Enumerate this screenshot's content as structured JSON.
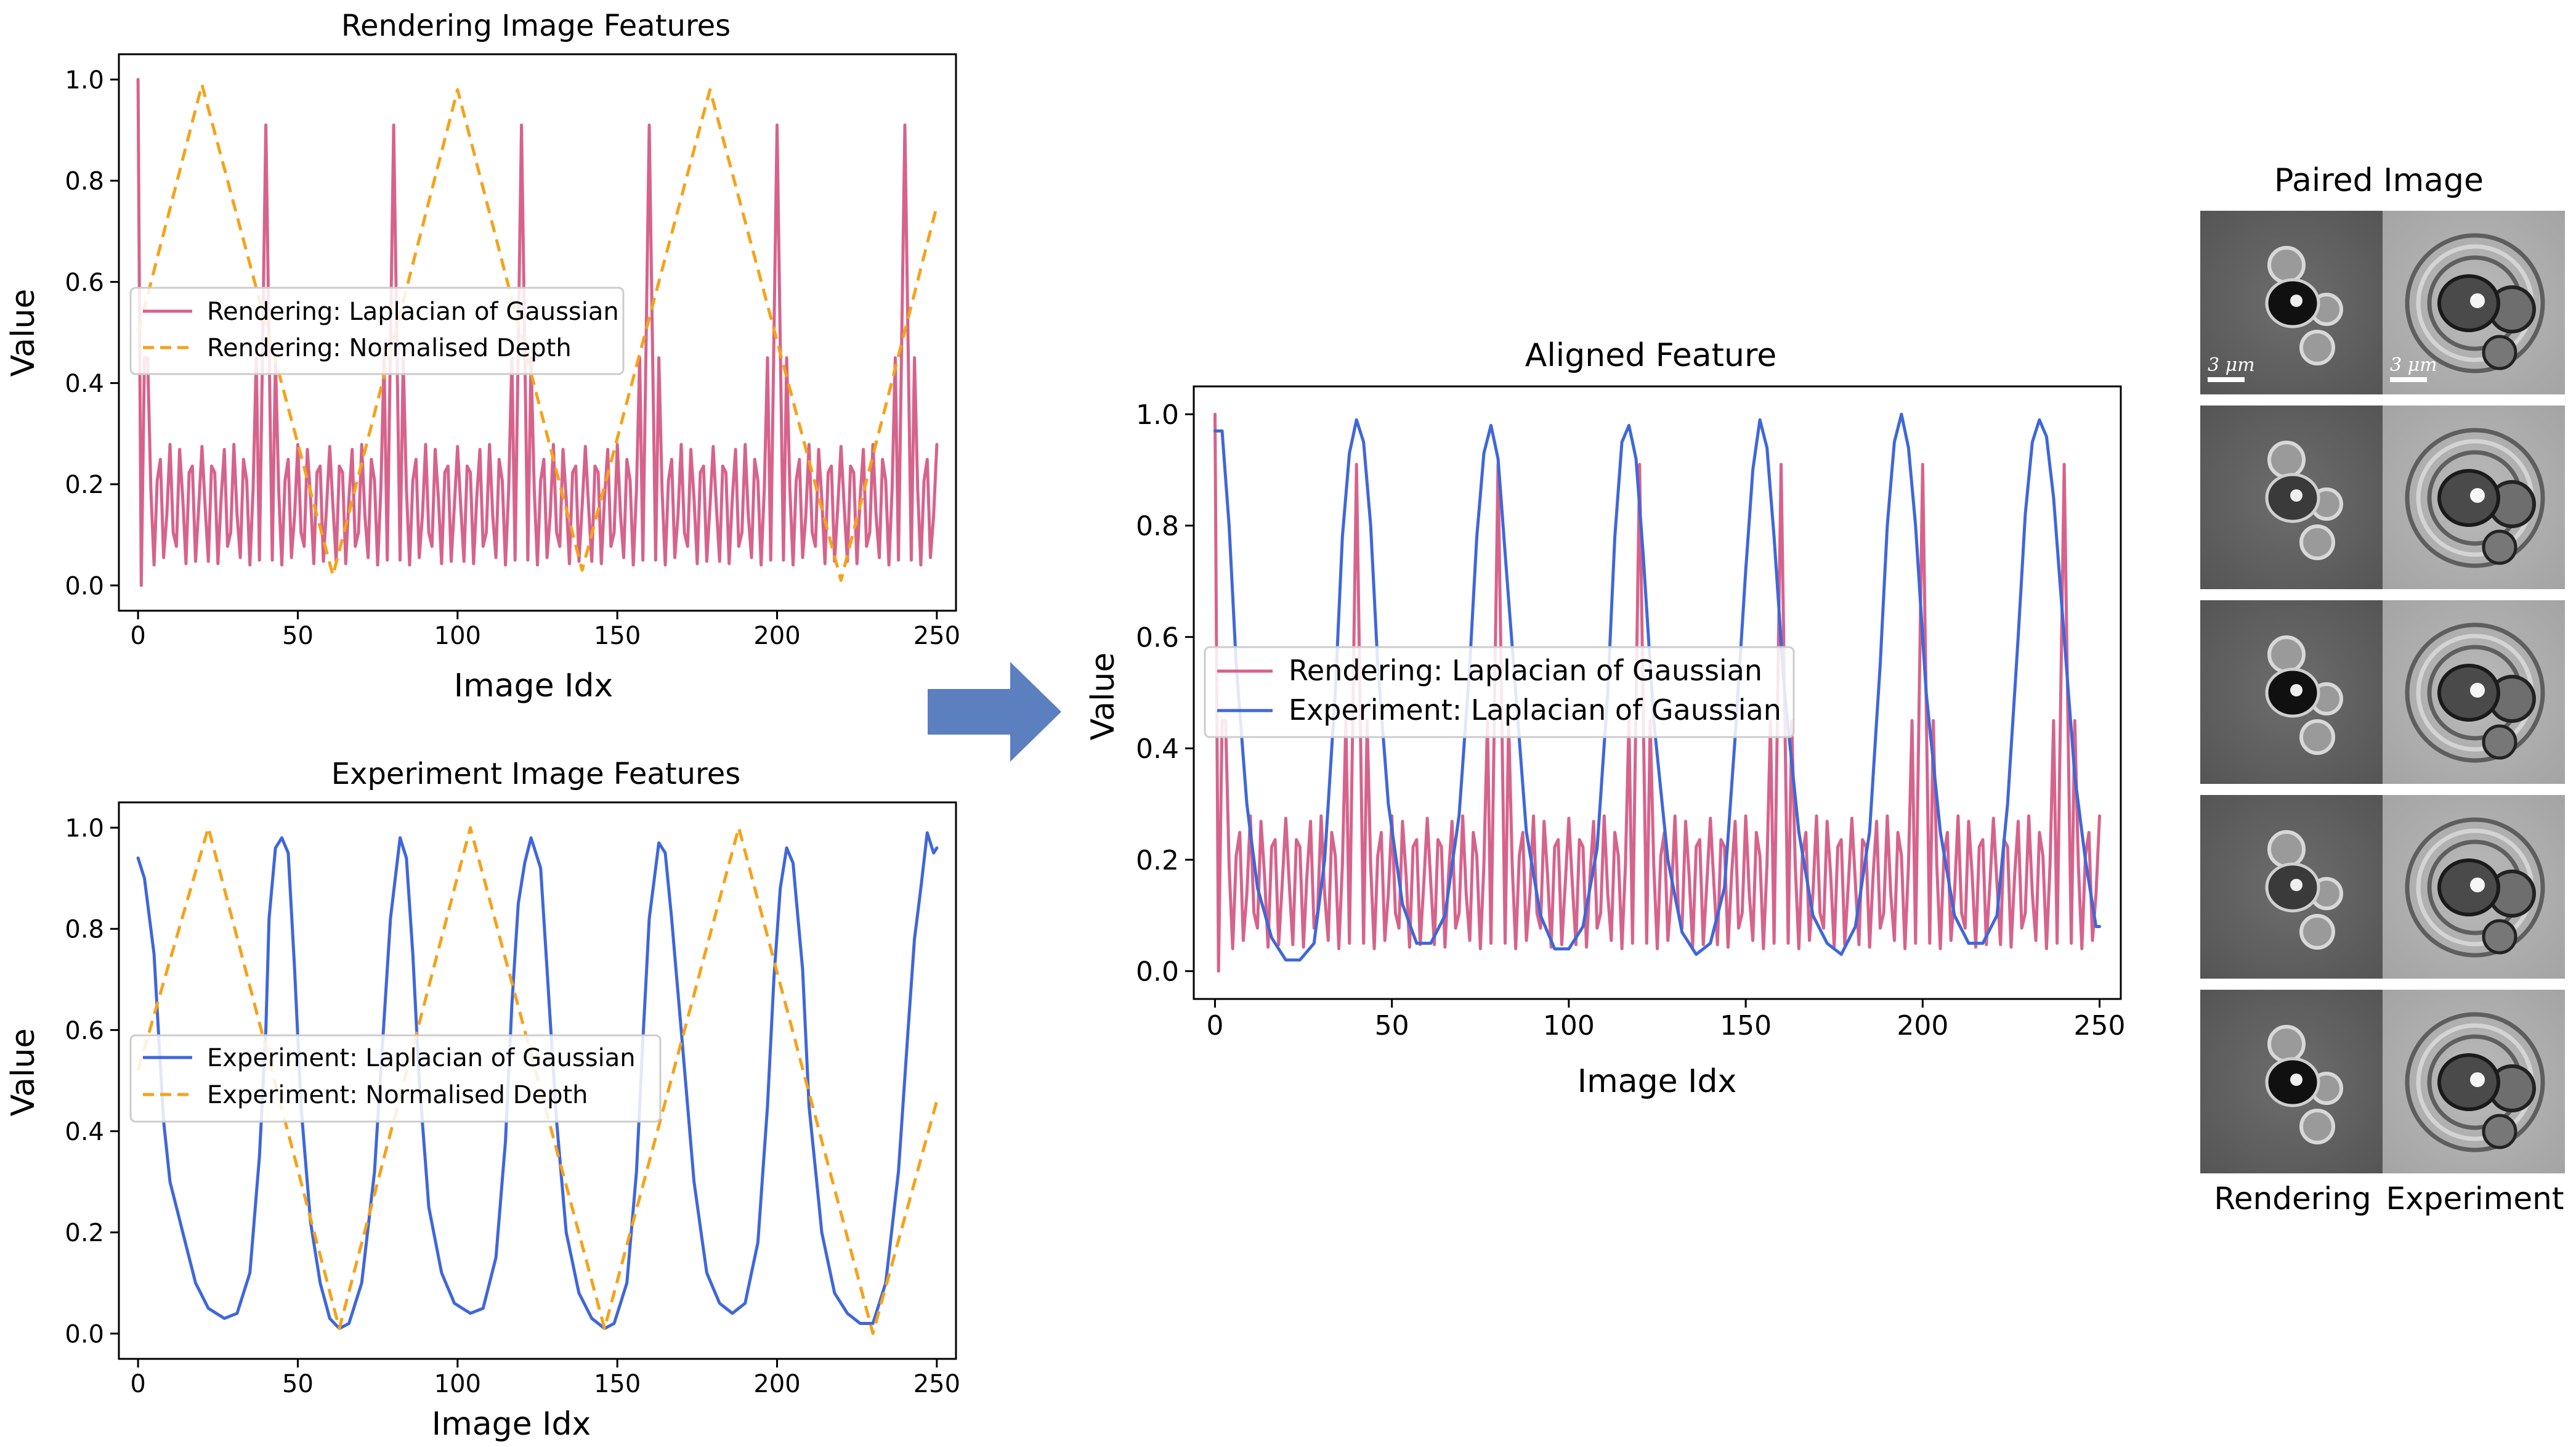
{
  "chart_data": [
    {
      "id": "rendering",
      "type": "line",
      "title": "Rendering Image Features",
      "xlabel": "Image Idx",
      "ylabel": "Value",
      "xlim": [
        -6,
        256
      ],
      "ylim": [
        -0.05,
        1.05
      ],
      "xticks": [
        0,
        50,
        100,
        150,
        200,
        250
      ],
      "yticks": [
        0.0,
        0.2,
        0.4,
        0.6,
        0.8,
        1.0
      ],
      "xtick_labels": [
        "0",
        "50",
        "100",
        "150",
        "200",
        "250"
      ],
      "ytick_labels": [
        "0.0",
        "0.2",
        "0.4",
        "0.6",
        "0.8",
        "1.0"
      ],
      "legend": "center-left",
      "series": [
        {
          "name": "Rendering: Laplacian of Gaussian",
          "color": "#d6638c",
          "style": "solid",
          "pattern": "log_render",
          "x_range": [
            0,
            250
          ]
        },
        {
          "name": "Rendering: Normalised Depth",
          "color": "#f5a21a",
          "style": "dashed",
          "pattern": "depth_render",
          "x_range": [
            0,
            250
          ],
          "keypoints": [
            [
              0,
              0.5
            ],
            [
              20,
              0.99
            ],
            [
              61,
              0.02
            ],
            [
              100,
              0.98
            ],
            [
              139,
              0.03
            ],
            [
              179,
              0.98
            ],
            [
              220,
              0.01
            ],
            [
              250,
              0.75
            ]
          ]
        }
      ]
    },
    {
      "id": "experiment",
      "type": "line",
      "title": "Experiment Image Features",
      "xlabel": "Image Idx",
      "ylabel": "Value",
      "xlim": [
        -6,
        256
      ],
      "ylim": [
        -0.05,
        1.05
      ],
      "xticks": [
        0,
        50,
        100,
        150,
        200,
        250
      ],
      "yticks": [
        0.0,
        0.2,
        0.4,
        0.6,
        0.8,
        1.0
      ],
      "xtick_labels": [
        "0",
        "50",
        "100",
        "150",
        "200",
        "250"
      ],
      "ytick_labels": [
        "0.0",
        "0.2",
        "0.4",
        "0.6",
        "0.8",
        "1.0"
      ],
      "legend": "center-left",
      "series": [
        {
          "name": "Experiment: Laplacian of Gaussian",
          "color": "#3f67d8",
          "style": "solid",
          "pattern": "log_experiment",
          "x_range": [
            0,
            250
          ],
          "keypoints": [
            [
              0,
              0.94
            ],
            [
              2,
              0.9
            ],
            [
              5,
              0.75
            ],
            [
              8,
              0.42
            ],
            [
              10,
              0.3
            ],
            [
              14,
              0.2
            ],
            [
              18,
              0.1
            ],
            [
              22,
              0.05
            ],
            [
              27,
              0.03
            ],
            [
              31,
              0.04
            ],
            [
              35,
              0.12
            ],
            [
              38,
              0.35
            ],
            [
              40,
              0.6
            ],
            [
              41,
              0.82
            ],
            [
              43,
              0.96
            ],
            [
              45,
              0.98
            ],
            [
              47,
              0.95
            ],
            [
              49,
              0.72
            ],
            [
              51,
              0.45
            ],
            [
              54,
              0.22
            ],
            [
              57,
              0.1
            ],
            [
              60,
              0.03
            ],
            [
              63,
              0.01
            ],
            [
              66,
              0.02
            ],
            [
              70,
              0.1
            ],
            [
              74,
              0.32
            ],
            [
              77,
              0.62
            ],
            [
              79,
              0.82
            ],
            [
              82,
              0.98
            ],
            [
              84,
              0.94
            ],
            [
              86,
              0.75
            ],
            [
              88,
              0.5
            ],
            [
              91,
              0.25
            ],
            [
              95,
              0.12
            ],
            [
              99,
              0.06
            ],
            [
              104,
              0.04
            ],
            [
              108,
              0.05
            ],
            [
              112,
              0.15
            ],
            [
              115,
              0.38
            ],
            [
              117,
              0.65
            ],
            [
              119,
              0.85
            ],
            [
              121,
              0.93
            ],
            [
              123,
              0.98
            ],
            [
              126,
              0.92
            ],
            [
              128,
              0.72
            ],
            [
              131,
              0.42
            ],
            [
              134,
              0.2
            ],
            [
              138,
              0.08
            ],
            [
              142,
              0.03
            ],
            [
              146,
              0.01
            ],
            [
              149,
              0.02
            ],
            [
              153,
              0.1
            ],
            [
              156,
              0.32
            ],
            [
              158,
              0.58
            ],
            [
              160,
              0.82
            ],
            [
              163,
              0.97
            ],
            [
              165,
              0.95
            ],
            [
              167,
              0.82
            ],
            [
              170,
              0.6
            ],
            [
              174,
              0.3
            ],
            [
              178,
              0.12
            ],
            [
              182,
              0.06
            ],
            [
              186,
              0.04
            ],
            [
              190,
              0.06
            ],
            [
              194,
              0.18
            ],
            [
              197,
              0.45
            ],
            [
              199,
              0.7
            ],
            [
              201,
              0.88
            ],
            [
              203,
              0.96
            ],
            [
              205,
              0.93
            ],
            [
              208,
              0.72
            ],
            [
              210,
              0.45
            ],
            [
              214,
              0.2
            ],
            [
              218,
              0.08
            ],
            [
              222,
              0.04
            ],
            [
              226,
              0.02
            ],
            [
              230,
              0.02
            ],
            [
              234,
              0.1
            ],
            [
              238,
              0.32
            ],
            [
              241,
              0.6
            ],
            [
              243,
              0.78
            ],
            [
              245,
              0.88
            ],
            [
              247,
              0.99
            ],
            [
              249,
              0.95
            ],
            [
              250,
              0.96
            ]
          ]
        },
        {
          "name": "Experiment: Normalised Depth",
          "color": "#f5a21a",
          "style": "dashed",
          "pattern": "depth_experiment",
          "x_range": [
            0,
            250
          ],
          "keypoints": [
            [
              0,
              0.52
            ],
            [
              22,
              1.0
            ],
            [
              63,
              0.01
            ],
            [
              104,
              1.0
            ],
            [
              146,
              0.01
            ],
            [
              188,
              1.0
            ],
            [
              230,
              0.0
            ],
            [
              250,
              0.46
            ]
          ]
        }
      ]
    },
    {
      "id": "aligned",
      "type": "line",
      "title": "Aligned Feature",
      "xlabel": "Image Idx",
      "ylabel": "Value",
      "xlim": [
        -6,
        256
      ],
      "ylim": [
        -0.05,
        1.05
      ],
      "xticks": [
        0,
        50,
        100,
        150,
        200,
        250
      ],
      "yticks": [
        0.0,
        0.2,
        0.4,
        0.6,
        0.8,
        1.0
      ],
      "xtick_labels": [
        "0",
        "50",
        "100",
        "150",
        "200",
        "250"
      ],
      "ytick_labels": [
        "0.0",
        "0.2",
        "0.4",
        "0.6",
        "0.8",
        "1.0"
      ],
      "legend": "center-left",
      "series": [
        {
          "name": "Rendering: Laplacian of Gaussian",
          "color": "#d6638c",
          "style": "solid",
          "pattern": "log_render",
          "x_range": [
            0,
            250
          ]
        },
        {
          "name": "Experiment: Laplacian of Gaussian",
          "color": "#3f67d8",
          "style": "solid",
          "pattern": "log_aligned",
          "x_range": [
            0,
            250
          ],
          "keypoints": [
            [
              0,
              0.97
            ],
            [
              2,
              0.97
            ],
            [
              4,
              0.8
            ],
            [
              6,
              0.55
            ],
            [
              9,
              0.3
            ],
            [
              12,
              0.15
            ],
            [
              16,
              0.06
            ],
            [
              20,
              0.02
            ],
            [
              24,
              0.02
            ],
            [
              28,
              0.05
            ],
            [
              31,
              0.2
            ],
            [
              34,
              0.5
            ],
            [
              36,
              0.78
            ],
            [
              38,
              0.93
            ],
            [
              40,
              0.99
            ],
            [
              42,
              0.95
            ],
            [
              44,
              0.8
            ],
            [
              46,
              0.55
            ],
            [
              49,
              0.3
            ],
            [
              53,
              0.12
            ],
            [
              57,
              0.05
            ],
            [
              61,
              0.05
            ],
            [
              65,
              0.1
            ],
            [
              69,
              0.28
            ],
            [
              72,
              0.55
            ],
            [
              74,
              0.78
            ],
            [
              76,
              0.93
            ],
            [
              78,
              0.98
            ],
            [
              80,
              0.92
            ],
            [
              82,
              0.75
            ],
            [
              85,
              0.5
            ],
            [
              88,
              0.25
            ],
            [
              92,
              0.1
            ],
            [
              96,
              0.04
            ],
            [
              100,
              0.04
            ],
            [
              104,
              0.08
            ],
            [
              108,
              0.22
            ],
            [
              111,
              0.5
            ],
            [
              113,
              0.78
            ],
            [
              115,
              0.95
            ],
            [
              117,
              0.98
            ],
            [
              119,
              0.92
            ],
            [
              121,
              0.75
            ],
            [
              124,
              0.45
            ],
            [
              128,
              0.2
            ],
            [
              132,
              0.07
            ],
            [
              136,
              0.03
            ],
            [
              140,
              0.05
            ],
            [
              144,
              0.15
            ],
            [
              147,
              0.42
            ],
            [
              150,
              0.72
            ],
            [
              152,
              0.9
            ],
            [
              154,
              0.99
            ],
            [
              156,
              0.94
            ],
            [
              158,
              0.78
            ],
            [
              161,
              0.5
            ],
            [
              165,
              0.25
            ],
            [
              169,
              0.1
            ],
            [
              173,
              0.05
            ],
            [
              177,
              0.03
            ],
            [
              181,
              0.08
            ],
            [
              185,
              0.25
            ],
            [
              188,
              0.55
            ],
            [
              190,
              0.8
            ],
            [
              192,
              0.95
            ],
            [
              194,
              1.0
            ],
            [
              196,
              0.94
            ],
            [
              198,
              0.8
            ],
            [
              201,
              0.5
            ],
            [
              205,
              0.25
            ],
            [
              209,
              0.1
            ],
            [
              213,
              0.05
            ],
            [
              217,
              0.05
            ],
            [
              221,
              0.1
            ],
            [
              224,
              0.3
            ],
            [
              227,
              0.6
            ],
            [
              229,
              0.82
            ],
            [
              231,
              0.95
            ],
            [
              233,
              0.99
            ],
            [
              235,
              0.96
            ],
            [
              237,
              0.85
            ],
            [
              240,
              0.6
            ],
            [
              243,
              0.35
            ],
            [
              246,
              0.2
            ],
            [
              249,
              0.08
            ]
          ]
        }
      ]
    }
  ],
  "paired_panel": {
    "title": "Paired Image",
    "col_left_label": "Rendering",
    "col_right_label": "Experiment",
    "scalebar_label": "3 μm",
    "rows": 5
  }
}
